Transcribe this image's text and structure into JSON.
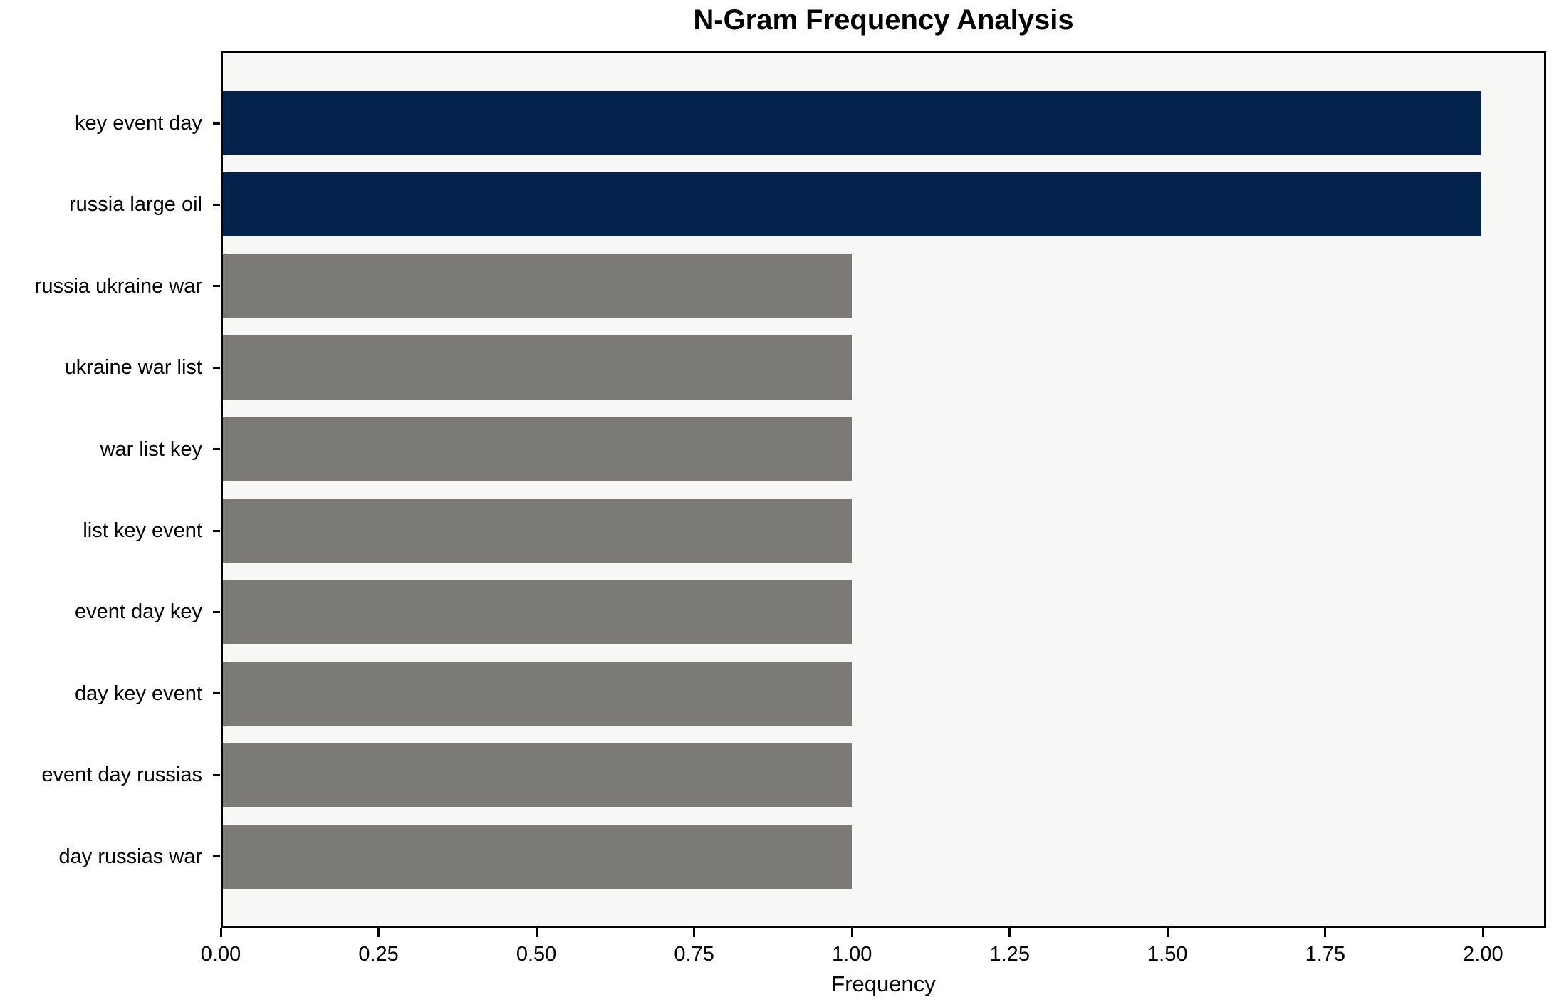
{
  "title": "N-Gram Frequency Analysis",
  "colors": {
    "navy_bar": "#03234d",
    "gray_bar": "#7b7a76",
    "plot_background": "#f7f7f6",
    "figure_background": "#ffffff",
    "spine": "#000000",
    "text": "#000000"
  },
  "chart_data": {
    "type": "bar",
    "orientation": "horizontal",
    "title": "N-Gram Frequency Analysis",
    "xlabel": "Frequency",
    "ylabel": "",
    "categories": [
      "key event day",
      "russia large oil",
      "russia ukraine war",
      "ukraine war list",
      "war list key",
      "list key event",
      "event day key",
      "day key event",
      "event day russias",
      "day russias war"
    ],
    "values": [
      2,
      2,
      1,
      1,
      1,
      1,
      1,
      1,
      1,
      1
    ],
    "bar_colors": [
      "#03234d",
      "#03234d",
      "#7b7a76",
      "#7b7a76",
      "#7b7a76",
      "#7b7a76",
      "#7b7a76",
      "#7b7a76",
      "#7b7a76",
      "#7b7a76"
    ],
    "xlim": [
      0,
      2.1
    ],
    "xticks": [
      "0.00",
      "0.25",
      "0.50",
      "0.75",
      "1.00",
      "1.25",
      "1.50",
      "1.75",
      "2.00"
    ],
    "xtick_values": [
      0,
      0.25,
      0.5,
      0.75,
      1.0,
      1.25,
      1.5,
      1.75,
      2.0
    ],
    "grid": false,
    "legend": null
  }
}
